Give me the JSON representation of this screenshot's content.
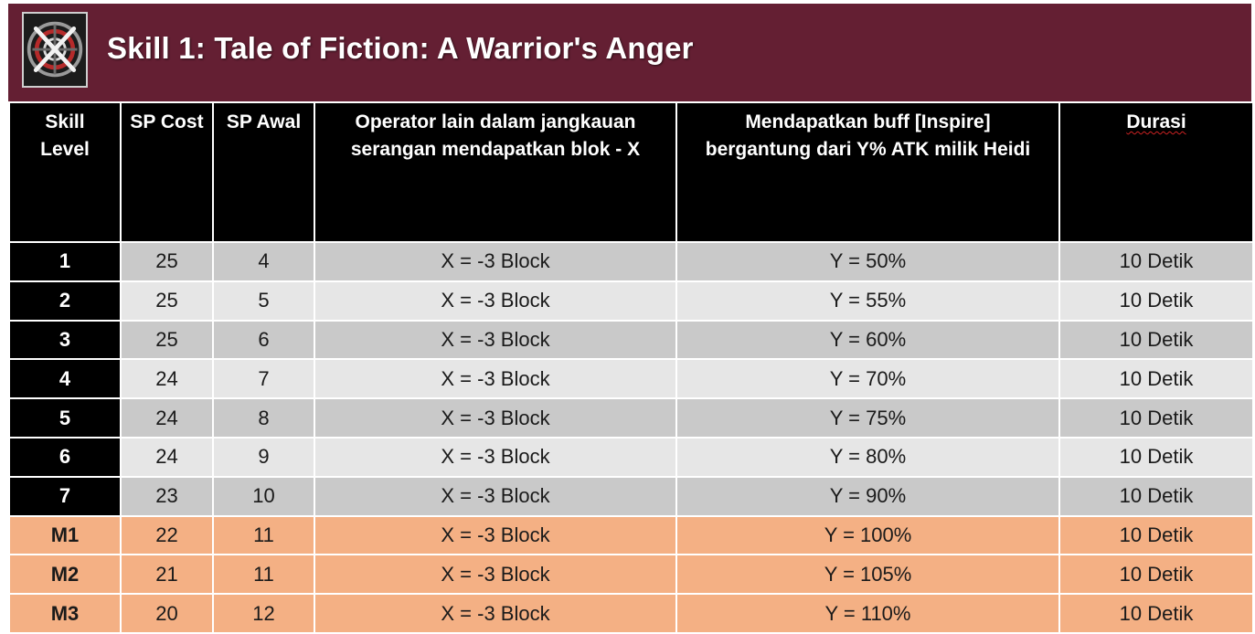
{
  "header": {
    "title": "Skill 1: Tale of Fiction: A Warrior's Anger",
    "icon": "skill-icon",
    "background_color": "#641f33"
  },
  "table": {
    "columns": [
      {
        "key": "level",
        "line1": "Skill",
        "line2": "Level"
      },
      {
        "key": "sp_cost",
        "line1": "SP Cost",
        "line2": ""
      },
      {
        "key": "sp_awal",
        "line1": "SP Awal",
        "line2": ""
      },
      {
        "key": "block",
        "line1": "Operator lain dalam jangkauan",
        "line2": "serangan mendapatkan blok - X"
      },
      {
        "key": "buff",
        "line1": "Mendapatkan buff [Inspire]",
        "line2": "bergantung dari Y% ATK milik Heidi"
      },
      {
        "key": "durasi",
        "line1": "Durasi",
        "line2": ""
      }
    ],
    "rows": [
      {
        "level": "1",
        "sp_cost": "25",
        "sp_awal": "4",
        "block": "X = -3 Block",
        "buff": "Y = 50%",
        "durasi": "10 Detik"
      },
      {
        "level": "2",
        "sp_cost": "25",
        "sp_awal": "5",
        "block": "X = -3 Block",
        "buff": "Y = 55%",
        "durasi": "10 Detik"
      },
      {
        "level": "3",
        "sp_cost": "25",
        "sp_awal": "6",
        "block": "X = -3 Block",
        "buff": "Y = 60%",
        "durasi": "10 Detik"
      },
      {
        "level": "4",
        "sp_cost": "24",
        "sp_awal": "7",
        "block": "X = -3 Block",
        "buff": "Y = 70%",
        "durasi": "10 Detik"
      },
      {
        "level": "5",
        "sp_cost": "24",
        "sp_awal": "8",
        "block": "X = -3 Block",
        "buff": "Y = 75%",
        "durasi": "10 Detik"
      },
      {
        "level": "6",
        "sp_cost": "24",
        "sp_awal": "9",
        "block": "X = -3 Block",
        "buff": "Y = 80%",
        "durasi": "10 Detik"
      },
      {
        "level": "7",
        "sp_cost": "23",
        "sp_awal": "10",
        "block": "X = -3 Block",
        "buff": "Y = 90%",
        "durasi": "10 Detik"
      },
      {
        "level": "M1",
        "sp_cost": "22",
        "sp_awal": "11",
        "block": "X = -3 Block",
        "buff": "Y = 100%",
        "durasi": "10 Detik"
      },
      {
        "level": "M2",
        "sp_cost": "21",
        "sp_awal": "11",
        "block": "X = -3 Block",
        "buff": "Y = 105%",
        "durasi": "10 Detik"
      },
      {
        "level": "M3",
        "sp_cost": "20",
        "sp_awal": "12",
        "block": "X = -3 Block",
        "buff": "Y = 110%",
        "durasi": "10 Detik"
      }
    ]
  },
  "colors": {
    "header_bg": "#000000",
    "row_dark": "#c9c9c9",
    "row_light": "#e6e6e6",
    "mastery_row": "#f4b084"
  }
}
